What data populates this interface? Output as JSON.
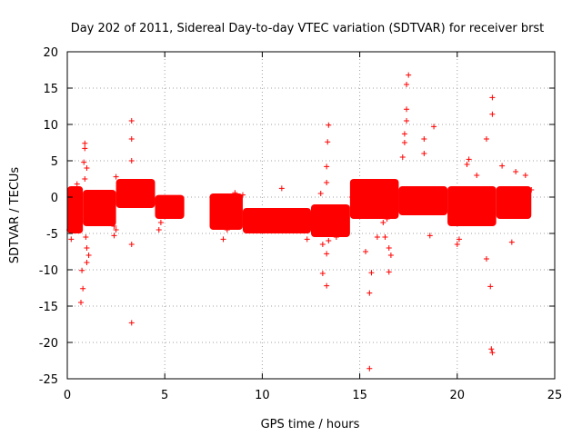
{
  "chart_data": {
    "type": "scatter",
    "title": "Day 202 of 2011, Sidereal Day-to-day VTEC variation (SDTVAR) for receiver brst",
    "xlabel": "GPS time / hours",
    "ylabel": "SDTVAR / TECUs",
    "xlim": [
      0,
      25
    ],
    "ylim": [
      -25,
      20
    ],
    "xticks": [
      0,
      5,
      10,
      15,
      20,
      25
    ],
    "yticks": [
      -25,
      -20,
      -15,
      -10,
      -5,
      0,
      5,
      10,
      15,
      20
    ],
    "grid": true,
    "color": "#ff0000",
    "marker": "plus",
    "bulk_band": [
      {
        "x": [
          0.0,
          0.8
        ],
        "y": [
          -5,
          1.5
        ]
      },
      {
        "x": [
          0.8,
          2.5
        ],
        "y": [
          -4,
          1
        ]
      },
      {
        "x": [
          2.5,
          4.5
        ],
        "y": [
          -1.5,
          2.5
        ]
      },
      {
        "x": [
          4.5,
          6.0
        ],
        "y": [
          -3,
          0.3
        ]
      },
      {
        "x": [
          7.3,
          9.0
        ],
        "y": [
          -4.5,
          0.5
        ]
      },
      {
        "x": [
          9.0,
          12.5
        ],
        "y": [
          -5,
          -1.5
        ]
      },
      {
        "x": [
          12.5,
          14.5
        ],
        "y": [
          -5.5,
          -1
        ]
      },
      {
        "x": [
          14.5,
          17.0
        ],
        "y": [
          -3,
          2.5
        ]
      },
      {
        "x": [
          17.0,
          19.5
        ],
        "y": [
          -2.5,
          1.5
        ]
      },
      {
        "x": [
          19.5,
          22.0
        ],
        "y": [
          -4,
          1.5
        ]
      },
      {
        "x": [
          22.0,
          23.8
        ],
        "y": [
          -3,
          1.5
        ]
      }
    ],
    "points": [
      [
        0.1,
        -4.5
      ],
      [
        0.2,
        -5.8
      ],
      [
        0.5,
        1.8
      ],
      [
        0.7,
        -14.5
      ],
      [
        0.75,
        -10.1
      ],
      [
        0.8,
        -12.6
      ],
      [
        0.85,
        4.8
      ],
      [
        0.9,
        7.4
      ],
      [
        0.9,
        6.7
      ],
      [
        0.95,
        -5.5
      ],
      [
        1.0,
        -7.0
      ],
      [
        1.0,
        -9.0
      ],
      [
        1.1,
        -8.0
      ],
      [
        1.0,
        4.0
      ],
      [
        0.9,
        2.5
      ],
      [
        2.4,
        -4.0
      ],
      [
        2.5,
        -4.5
      ],
      [
        2.4,
        -5.3
      ],
      [
        2.5,
        2.8
      ],
      [
        3.3,
        -6.5
      ],
      [
        3.3,
        10.5
      ],
      [
        3.3,
        -17.3
      ],
      [
        3.3,
        5.0
      ],
      [
        3.3,
        8.0
      ],
      [
        4.7,
        -4.5
      ],
      [
        4.8,
        -3.5
      ],
      [
        8.0,
        -5.8
      ],
      [
        8.2,
        -4.5
      ],
      [
        8.6,
        0.6
      ],
      [
        9.0,
        0.3
      ],
      [
        11.0,
        1.2
      ],
      [
        12.3,
        -5.8
      ],
      [
        12.9,
        -2.5
      ],
      [
        13.0,
        0.5
      ],
      [
        13.1,
        -6.5
      ],
      [
        13.1,
        -10.5
      ],
      [
        13.3,
        -12.2
      ],
      [
        13.3,
        -7.8
      ],
      [
        13.4,
        -6.0
      ],
      [
        13.3,
        2.0
      ],
      [
        13.3,
        4.2
      ],
      [
        13.35,
        7.6
      ],
      [
        13.4,
        9.9
      ],
      [
        13.8,
        -5.5
      ],
      [
        14.6,
        0.0
      ],
      [
        15.0,
        -0.5
      ],
      [
        15.3,
        -7.5
      ],
      [
        15.5,
        -13.2
      ],
      [
        15.6,
        -10.4
      ],
      [
        15.5,
        -23.6
      ],
      [
        15.9,
        -5.5
      ],
      [
        16.2,
        -3.5
      ],
      [
        16.4,
        -3.0
      ],
      [
        16.5,
        -10.3
      ],
      [
        16.6,
        -8.0
      ],
      [
        16.5,
        -7.0
      ],
      [
        16.3,
        -5.5
      ],
      [
        17.2,
        5.5
      ],
      [
        17.3,
        8.7
      ],
      [
        17.4,
        10.5
      ],
      [
        17.4,
        12.1
      ],
      [
        17.4,
        15.5
      ],
      [
        17.5,
        16.8
      ],
      [
        17.3,
        7.5
      ],
      [
        18.3,
        6.0
      ],
      [
        18.3,
        8.0
      ],
      [
        18.8,
        9.7
      ],
      [
        18.6,
        -5.3
      ],
      [
        20.0,
        -6.5
      ],
      [
        20.1,
        -5.8
      ],
      [
        20.5,
        4.5
      ],
      [
        20.6,
        5.2
      ],
      [
        21.0,
        3.0
      ],
      [
        21.5,
        -8.5
      ],
      [
        21.7,
        -12.3
      ],
      [
        21.75,
        -20.9
      ],
      [
        21.8,
        -21.4
      ],
      [
        21.8,
        11.4
      ],
      [
        21.8,
        13.7
      ],
      [
        21.5,
        8.0
      ],
      [
        22.8,
        -6.2
      ],
      [
        22.3,
        4.3
      ],
      [
        23.0,
        3.5
      ],
      [
        23.5,
        3.0
      ],
      [
        23.8,
        1.0
      ]
    ]
  }
}
